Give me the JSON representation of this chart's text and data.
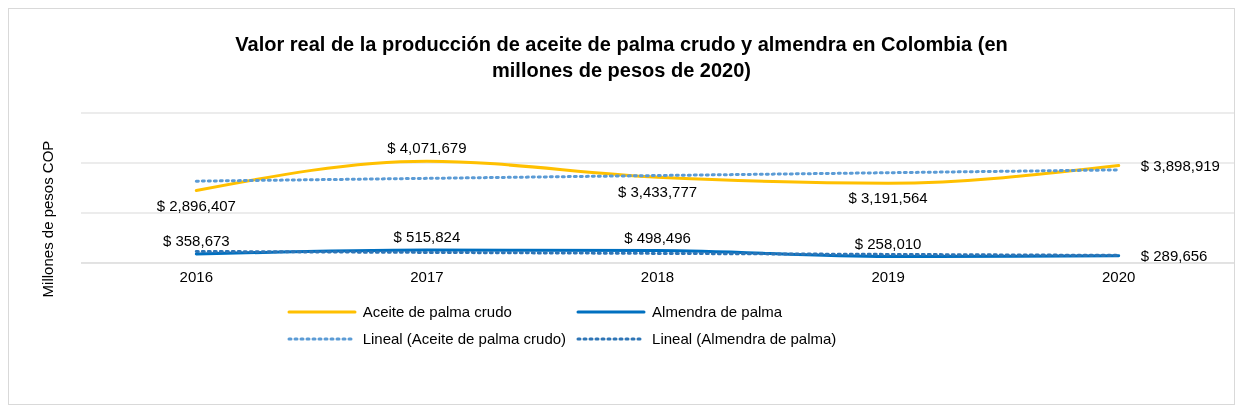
{
  "chart_data": {
    "type": "line",
    "title": "Valor real de la producción de aceite de palma crudo y almendra en Colombia (en millones de pesos de 2020)",
    "ylabel": "Millones de pesos COP",
    "categories": [
      "2016",
      "2017",
      "2018",
      "2019",
      "2020"
    ],
    "series": [
      {
        "name": "Aceite de palma crudo",
        "color": "#ffc000",
        "line_style": "solid",
        "values": [
          2896407,
          4071679,
          3433777,
          3191564,
          3898919
        ],
        "value_labels": [
          "$ 2,896,407",
          "$ 4,071,679",
          "$ 3,433,777",
          "$ 3,191,564",
          "$ 3,898,919"
        ]
      },
      {
        "name": "Almendra de palma",
        "color": "#0070c0",
        "line_style": "solid",
        "values": [
          358673,
          515824,
          498496,
          258010,
          289656
        ],
        "value_labels": [
          "$ 358,673",
          "$ 515,824",
          "$ 498,496",
          "$ 258,010",
          "$ 289,656"
        ]
      },
      {
        "name": "Lineal (Aceite de palma crudo)",
        "color": "#5b9bd5",
        "line_style": "dotted",
        "values": [
          3274000,
          3386000,
          3499000,
          3611000,
          3724000
        ]
      },
      {
        "name": "Lineal (Almendra de palma)",
        "color": "#2e75b6",
        "line_style": "dotted",
        "values": [
          463000,
          423000,
          384000,
          344000,
          305000
        ]
      }
    ],
    "ylim": [
      0,
      6000000
    ],
    "yticks": [
      {
        "value": 0,
        "label": null
      },
      {
        "value": 2000000,
        "label": null
      },
      {
        "value": 4000000,
        "label": null
      },
      {
        "value": 6000000,
        "label": null
      }
    ],
    "grid": "y",
    "tick_labels": "x",
    "marker": "none",
    "legend": "bottom"
  }
}
